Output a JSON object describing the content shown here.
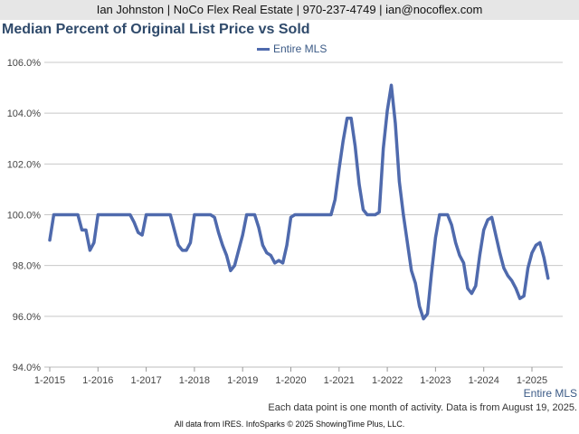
{
  "header": {
    "contact": "Ian Johnston | NoCo Flex Real Estate | 970-237-4749 | ian@nocoflex.com"
  },
  "chart_data": {
    "type": "line",
    "title": "Median Percent of Original List Price vs Sold",
    "legend": {
      "position": "top",
      "entries": [
        "Entire MLS"
      ]
    },
    "grid": true,
    "ylim": [
      94,
      106
    ],
    "yticks": [
      94,
      96,
      98,
      100,
      102,
      104,
      106
    ],
    "ytick_labels": [
      "94.0%",
      "96.0%",
      "98.0%",
      "100.0%",
      "102.0%",
      "104.0%",
      "106.0%"
    ],
    "xtick_labels": [
      "1-2015",
      "1-2016",
      "1-2017",
      "1-2018",
      "1-2019",
      "1-2020",
      "1-2021",
      "1-2022",
      "1-2023",
      "1-2024",
      "1-2025"
    ],
    "x_start": "1-2015",
    "series": [
      {
        "name": "Entire MLS",
        "color": "#4f6aad",
        "values": [
          99.0,
          100.0,
          100.0,
          100.0,
          100.0,
          100.0,
          100.0,
          100.0,
          99.4,
          99.4,
          98.6,
          98.9,
          100.0,
          100.0,
          100.0,
          100.0,
          100.0,
          100.0,
          100.0,
          100.0,
          100.0,
          99.7,
          99.3,
          99.2,
          100.0,
          100.0,
          100.0,
          100.0,
          100.0,
          100.0,
          100.0,
          99.4,
          98.8,
          98.6,
          98.6,
          98.9,
          100.0,
          100.0,
          100.0,
          100.0,
          100.0,
          99.9,
          99.3,
          98.8,
          98.4,
          97.8,
          98.0,
          98.6,
          99.2,
          100.0,
          100.0,
          100.0,
          99.5,
          98.8,
          98.5,
          98.4,
          98.1,
          98.2,
          98.1,
          98.8,
          99.9,
          100.0,
          100.0,
          100.0,
          100.0,
          100.0,
          100.0,
          100.0,
          100.0,
          100.0,
          100.0,
          100.6,
          101.8,
          102.9,
          103.8,
          103.8,
          102.7,
          101.2,
          100.2,
          100.0,
          100.0,
          100.0,
          100.1,
          102.6,
          104.1,
          105.1,
          103.6,
          101.3,
          100.0,
          98.9,
          97.8,
          97.3,
          96.4,
          95.9,
          96.1,
          97.7,
          99.1,
          100.0,
          100.0,
          100.0,
          99.6,
          98.9,
          98.4,
          98.1,
          97.1,
          96.9,
          97.2,
          98.4,
          99.4,
          99.8,
          99.9,
          99.2,
          98.5,
          97.9,
          97.6,
          97.4,
          97.1,
          96.7,
          96.8,
          97.9,
          98.5,
          98.8,
          98.9,
          98.3,
          97.5
        ]
      }
    ],
    "series_label": "Entire MLS",
    "note": "Each data point is one month of activity. Data is from August 19, 2025.",
    "source": "All data from IRES. InfoSparks © 2025 ShowingTime Plus, LLC."
  }
}
